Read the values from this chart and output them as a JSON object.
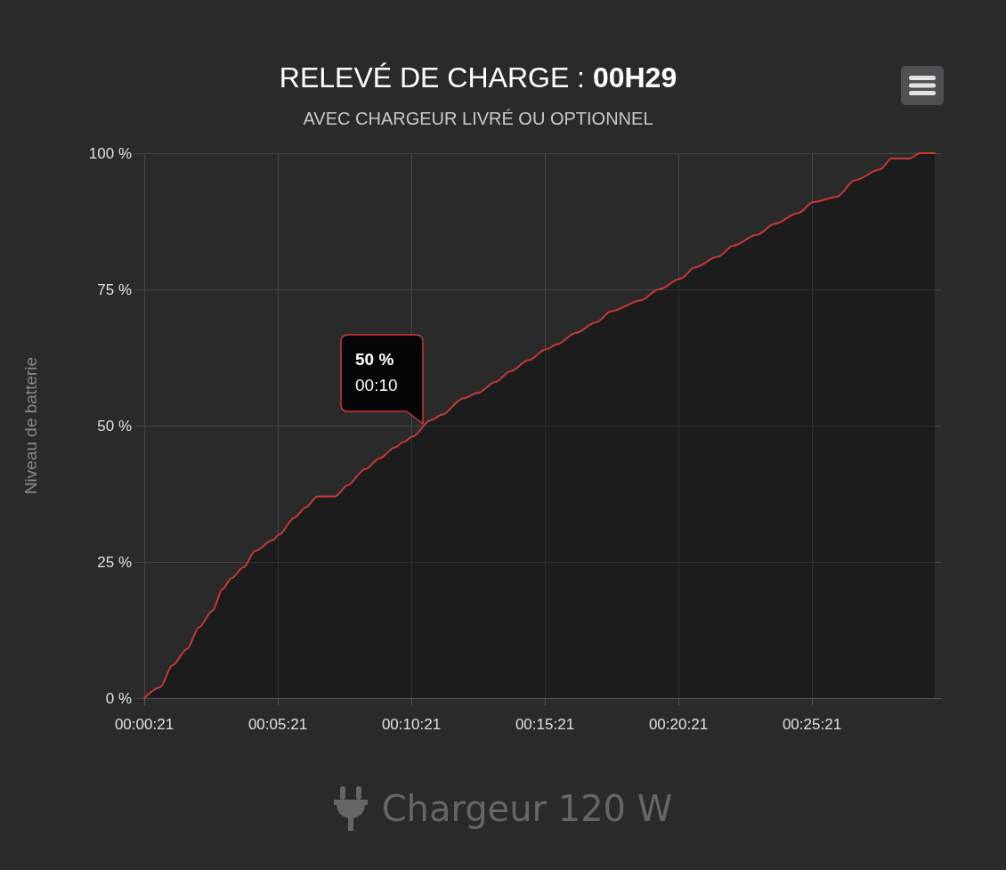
{
  "chart_data": {
    "type": "area",
    "title": "RELEVÉ DE CHARGE : 00H29",
    "subtitle": "AVEC CHARGEUR LIVRÉ OU OPTIONNEL",
    "ylabel": "Niveau de batterie",
    "x": [
      21,
      57,
      84,
      117,
      144,
      174,
      197,
      217,
      244,
      270,
      310,
      324,
      357,
      384,
      410,
      450,
      477,
      517,
      550,
      584,
      604,
      624,
      664,
      690,
      737,
      770,
      810,
      844,
      884,
      924,
      950,
      990,
      1037,
      1070,
      1137,
      1177,
      1227,
      1257,
      1310,
      1344,
      1397,
      1437,
      1490,
      1524,
      1577,
      1617,
      1674,
      1700,
      1740,
      1764,
      1797
    ],
    "series": [
      {
        "color": "#c8393b",
        "values": [
          0,
          2,
          6,
          9,
          13,
          16,
          20,
          22,
          24,
          27,
          29,
          30,
          33,
          35,
          37,
          37,
          39,
          42,
          44,
          46,
          47,
          48,
          51,
          52,
          55,
          56,
          58,
          60,
          62,
          64,
          65,
          67,
          69,
          71,
          73,
          75,
          77,
          79,
          81,
          83,
          85,
          87,
          89,
          91,
          92,
          95,
          97,
          99,
          99,
          100,
          100
        ]
      }
    ],
    "xlim": [
      21,
      1813
    ],
    "xticks": [
      {
        "value": 21,
        "label": "00:00:21"
      },
      {
        "value": 321,
        "label": "00:05:21"
      },
      {
        "value": 621,
        "label": "00:10:21"
      },
      {
        "value": 921,
        "label": "00:15:21"
      },
      {
        "value": 1221,
        "label": "00:20:21"
      },
      {
        "value": 1521,
        "label": "00:25:21"
      }
    ],
    "ylim": [
      0,
      100
    ],
    "yticks": [
      {
        "value": 0,
        "label": "0 %"
      },
      {
        "value": 25,
        "label": "25 %"
      },
      {
        "value": 50,
        "label": "50 %"
      },
      {
        "value": 75,
        "label": "75 %"
      },
      {
        "value": 100,
        "label": "100 %"
      }
    ],
    "grid": true,
    "annotations": [
      {
        "text": "50 %\n00:10",
        "x": 647,
        "y": 50
      },
      "Chargeur 120 W"
    ]
  }
}
